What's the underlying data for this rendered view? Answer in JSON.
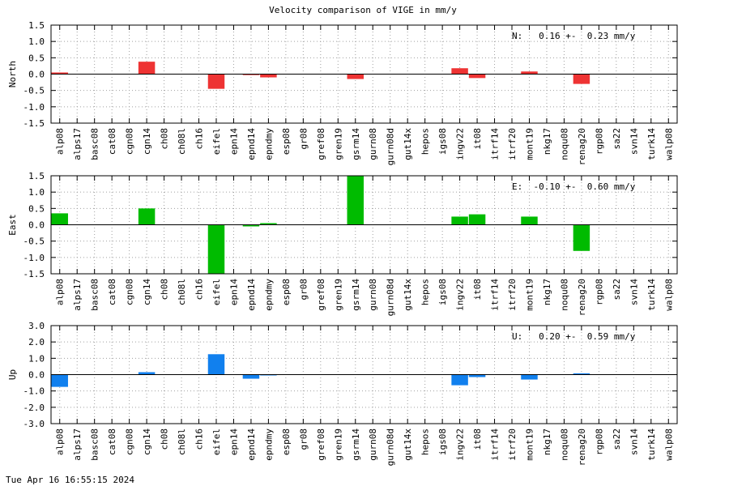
{
  "chart_data": {
    "type": "bar",
    "title": "Velocity comparison of VIGE in mm/y",
    "categories": [
      "alp08",
      "alps17",
      "basc08",
      "cat08",
      "cgn08",
      "cgn14",
      "ch08",
      "ch08l",
      "ch16",
      "eifel",
      "epn14",
      "epnd14",
      "epndmy",
      "esp08",
      "gr08",
      "gref08",
      "gren19",
      "gsrm14",
      "gurn08",
      "gurn08d",
      "gut14x",
      "hepos",
      "igs08",
      "ingv22",
      "it08",
      "itrf14",
      "itrf20",
      "mont19",
      "nkg17",
      "noqu08",
      "renag20",
      "rgp08",
      "sa22",
      "svn14",
      "turk14",
      "walp08"
    ],
    "grid": true,
    "panels": [
      {
        "ylabel": "North",
        "color": "#ee3333",
        "ylim": [
          -1.5,
          1.5
        ],
        "ticks": [
          "1.5",
          "1.0",
          "0.5",
          "0.0",
          "-0.5",
          "-1.0",
          "-1.5"
        ],
        "summary": "N:   0.16 +-  0.23 mm/y",
        "values": [
          0.05,
          0,
          0,
          0,
          0,
          0.38,
          0,
          0,
          0,
          -0.45,
          0,
          -0.03,
          -0.1,
          0,
          0,
          0,
          0,
          -0.15,
          0,
          0,
          0,
          0,
          0,
          0.18,
          -0.12,
          0,
          0,
          0.08,
          0,
          0,
          -0.3,
          0,
          0,
          0,
          0,
          0
        ]
      },
      {
        "ylabel": "East",
        "color": "#00bb00",
        "ylim": [
          -1.5,
          1.5
        ],
        "ticks": [
          "1.5",
          "1.0",
          "0.5",
          "0.0",
          "-0.5",
          "-1.0",
          "-1.5"
        ],
        "summary": "E:  -0.10 +-  0.60 mm/y",
        "values": [
          0.35,
          0,
          0,
          0,
          0,
          0.5,
          0,
          0,
          0,
          -1.5,
          0,
          -0.05,
          0.05,
          0,
          0,
          0,
          0,
          1.5,
          0,
          0,
          0,
          0,
          0,
          0.25,
          0.32,
          0,
          0,
          0.25,
          0,
          0,
          -0.8,
          0,
          0,
          0,
          0,
          0
        ]
      },
      {
        "ylabel": "Up",
        "color": "#1180ee",
        "ylim": [
          -3.0,
          3.0
        ],
        "ticks": [
          "3.0",
          "2.0",
          "1.0",
          "0.0",
          "-1.0",
          "-2.0",
          "-3.0"
        ],
        "summary": "U:   0.20 +-  0.59 mm/y",
        "values": [
          -0.75,
          0,
          0,
          0,
          0,
          0.15,
          0,
          0,
          0,
          1.25,
          0,
          -0.25,
          -0.05,
          0,
          0,
          0,
          0,
          0,
          0,
          0,
          0,
          0,
          0,
          -0.65,
          -0.15,
          0,
          0,
          -0.3,
          0,
          0,
          0.08,
          0,
          0,
          0,
          0,
          0
        ]
      }
    ]
  },
  "footer": {
    "timestamp": "Tue Apr 16 16:55:15 2024"
  }
}
